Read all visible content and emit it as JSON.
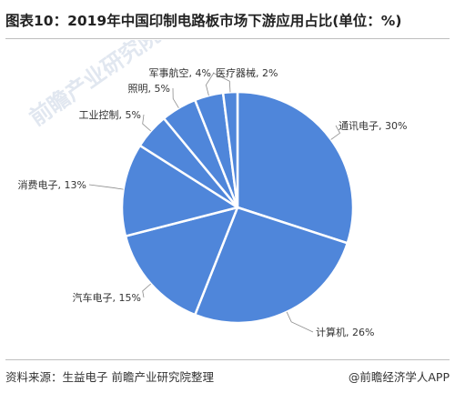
{
  "title": "图表10：2019年中国印制电路板市场下游应用占比(单位：%)",
  "footer": {
    "source": "资料来源：生益电子 前瞻产业研究院整理",
    "credit": "@前瞻经济学人APP"
  },
  "watermark": "前瞻产业研究院",
  "colors": {
    "slice_fill": "#4f86da",
    "slice_stroke": "#ffffff",
    "leader_line": "#8c8c8c",
    "label_text": "#333333"
  },
  "chart_data": {
    "type": "pie",
    "title": "图表10：2019年中国印制电路板市场下游应用占比(单位：%)",
    "unit": "%",
    "start": "12 o'clock, clockwise",
    "slices": [
      {
        "label": "通讯电子, 30%",
        "value": 30
      },
      {
        "label": "计算机, 26%",
        "value": 26
      },
      {
        "label": "汽车电子, 15%",
        "value": 15
      },
      {
        "label": "消费电子, 13%",
        "value": 13
      },
      {
        "label": "工业控制, 5%",
        "value": 5
      },
      {
        "label": "照明, 5%",
        "value": 5
      },
      {
        "label": "军事航空, 4%",
        "value": 4
      },
      {
        "label": "医疗器械, 2%",
        "value": 2
      }
    ]
  }
}
